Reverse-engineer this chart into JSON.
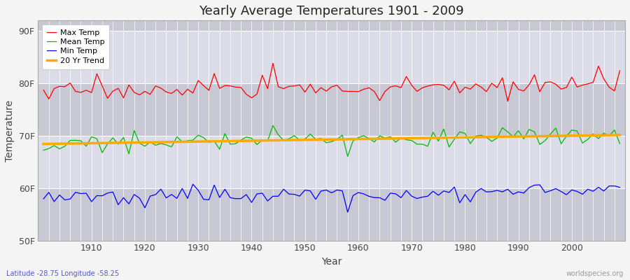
{
  "title": "Yearly Average Temperatures 1901 - 2009",
  "xlabel": "Year",
  "ylabel": "Temperature",
  "lat_lon_label": "Latitude -28.75 Longitude -58.25",
  "credit_label": "worldspecies.org",
  "year_start": 1901,
  "year_end": 2009,
  "yticks": [
    50,
    60,
    70,
    80,
    90
  ],
  "ytick_labels": [
    "50F",
    "60F",
    "70F",
    "80F",
    "90F"
  ],
  "ylim": [
    50,
    92
  ],
  "xlim": [
    1900,
    2010
  ],
  "plot_bg_color": "#e0e0e8",
  "band_light": "#dcdce8",
  "band_dark": "#c8c8d8",
  "grid_color": "#ffffff",
  "line_colors": {
    "max": "#ff0000",
    "mean": "#00bb00",
    "min": "#0000ff",
    "trend": "#ffaa00"
  }
}
